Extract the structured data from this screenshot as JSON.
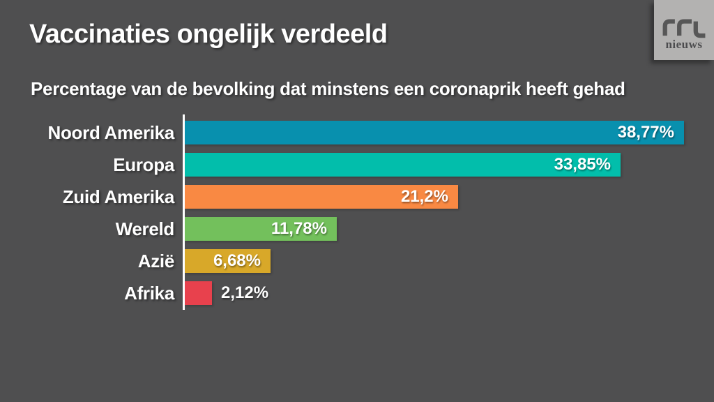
{
  "background_color": "#4F4F50",
  "header": {
    "title": "Vaccinaties ongelijk verdeeld",
    "subtitle": "Percentage van de bevolking dat minstens een coronaprik heeft gehad"
  },
  "logo": {
    "brand": "rtl",
    "sub": "nieuws",
    "box_color": "#B3B2B1",
    "text_color": "#575757"
  },
  "chart_data": {
    "type": "bar",
    "orientation": "horizontal",
    "title": "Vaccinaties ongelijk verdeeld",
    "subtitle": "Percentage van de bevolking dat minstens een coronaprik heeft gehad",
    "categories": [
      "Noord Amerika",
      "Europa",
      "Zuid Amerika",
      "Wereld",
      "Azië",
      "Afrika"
    ],
    "values": [
      38.77,
      33.85,
      21.2,
      11.78,
      6.68,
      2.12
    ],
    "value_labels": [
      "38,77%",
      "33,85%",
      "21,2%",
      "11,78%",
      "6,68%",
      "2,12%"
    ],
    "bar_colors": [
      "#0890AE",
      "#02BEAB",
      "#F98943",
      "#73C05C",
      "#D8A829",
      "#E8414D"
    ],
    "unit": "%",
    "xlim": [
      0,
      38.77
    ],
    "grid": false,
    "legend": false,
    "axis_line_color": "#FFFFFF",
    "label_text_color": "#FFFFFF",
    "value_text_color": "#FFFFFF"
  }
}
